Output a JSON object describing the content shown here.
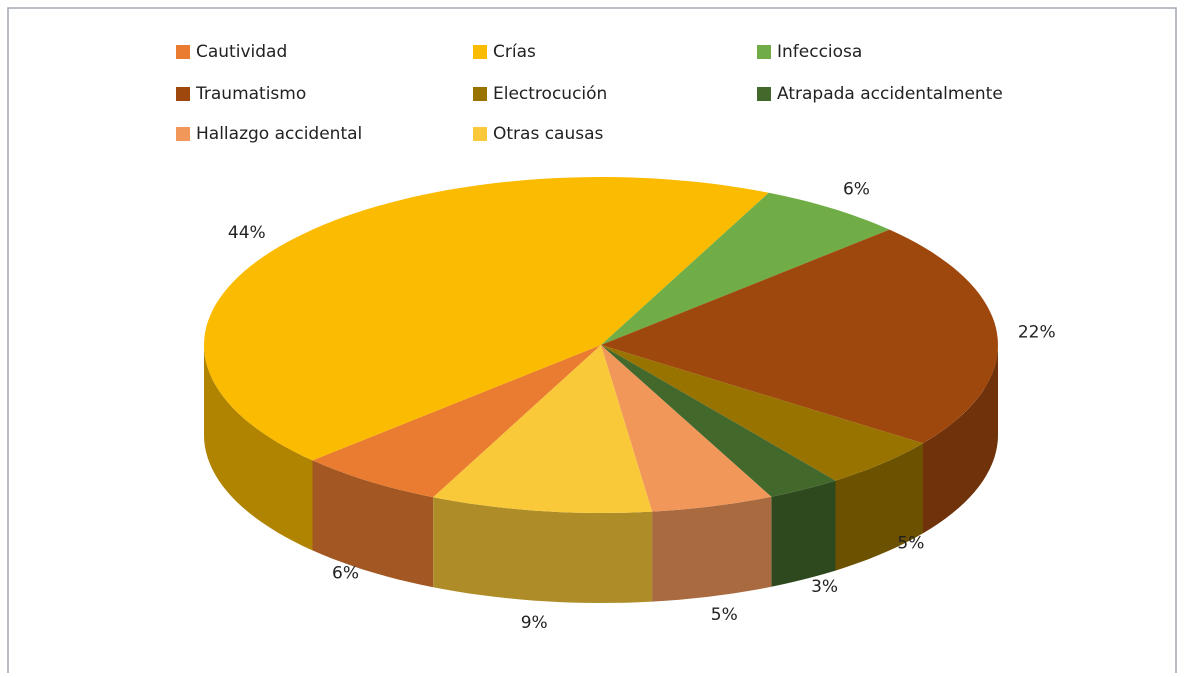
{
  "chart_data": {
    "type": "pie3d",
    "categories": [
      "Cautividad",
      "Crías",
      "Infecciosa",
      "Traumatismo",
      "Electrocución",
      "Atrapada accidentalmente",
      "Hallazgo accidental",
      "Otras causas"
    ],
    "values": [
      6,
      44,
      6,
      22,
      5,
      3,
      5,
      9
    ],
    "value_labels": [
      "6%",
      "44%",
      "6%",
      "22%",
      "5%",
      "3%",
      "5%",
      "9%"
    ],
    "colors": [
      "#e97c30",
      "#fbbb00",
      "#70ad47",
      "#9e480e",
      "#997300",
      "#43682b",
      "#f1975a",
      "#f9c93a"
    ],
    "legend": "top"
  }
}
